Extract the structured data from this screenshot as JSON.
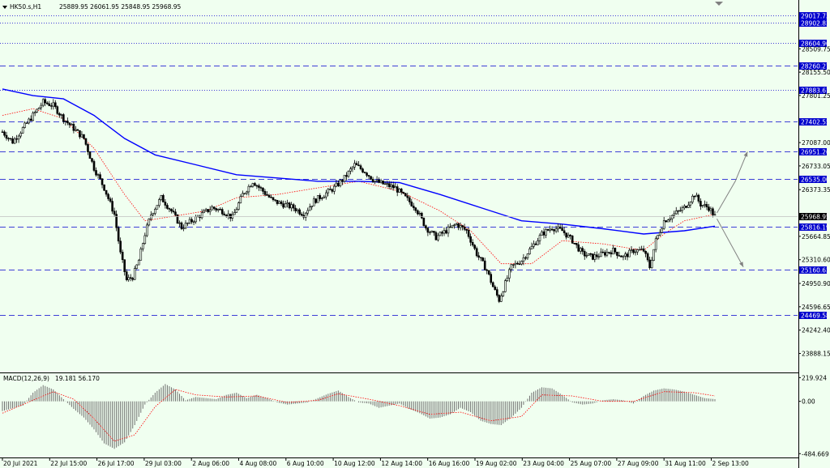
{
  "header": {
    "symbol_info": "HK50.s,H1",
    "ohlc": "25889.95 26061.95 25848.95 25968.95"
  },
  "macd_header": {
    "name": "MACD(12,26,9)",
    "values": "19.181 56.170"
  },
  "colors": {
    "background": "#f0fff0",
    "candle": "#000000",
    "ma_slow": "#0000ff",
    "ma_fast": "#ff0000",
    "level_line": "#0000cd",
    "level_box": "#0000cd",
    "arrow": "#808080"
  },
  "chart_data": [
    {
      "type": "candlestick",
      "title": "HK50.s,H1",
      "ylim": [
        23600,
        29250
      ],
      "price_ticks": [
        "28509.75",
        "28155.50",
        "27801.25",
        "27087.00",
        "26733.05",
        "26373.35",
        "25664.85",
        "25310.60",
        "24950.90",
        "24596.65",
        "24242.40",
        "23888.15"
      ],
      "current_price": "25968.95",
      "levels": [
        {
          "value": 29017.73,
          "label": "29017.73",
          "style": "dotted"
        },
        {
          "value": 28902.83,
          "label": "28902.83",
          "style": "dotted"
        },
        {
          "value": 28604.96,
          "label": "28604.96",
          "style": "dotted"
        },
        {
          "value": 28260.27,
          "label": "28260.27",
          "style": "dashed"
        },
        {
          "value": 27883.67,
          "label": "27883.67",
          "style": "dotted"
        },
        {
          "value": 27402.55,
          "label": "27402.55",
          "style": "dashed"
        },
        {
          "value": 26951.26,
          "label": "26951.26",
          "style": "dashed"
        },
        {
          "value": 26535.0,
          "label": "26535.00",
          "style": "dashed"
        },
        {
          "value": 25816.19,
          "label": "25816.19",
          "style": "dashed"
        },
        {
          "value": 25160.63,
          "label": "25160.63",
          "style": "dashed"
        },
        {
          "value": 24469.58,
          "label": "24469.58",
          "style": "dashed"
        }
      ],
      "time_labels": [
        "20 Jul 2021",
        "22 Jul 15:00",
        "26 Jul 17:00",
        "29 Jul 03:00",
        "2 Aug 06:00",
        "4 Aug 08:00",
        "6 Aug 10:00",
        "10 Aug 12:00",
        "12 Aug 14:00",
        "16 Aug 16:00",
        "19 Aug 02:00",
        "23 Aug 04:00",
        "25 Aug 07:00",
        "27 Aug 09:00",
        "31 Aug 11:00",
        "2 Sep 13:00"
      ],
      "close_path": [
        [
          0,
          27250
        ],
        [
          5,
          27100
        ],
        [
          10,
          27300
        ],
        [
          15,
          27500
        ],
        [
          20,
          27700
        ],
        [
          25,
          27650
        ],
        [
          30,
          27450
        ],
        [
          35,
          27300
        ],
        [
          40,
          27150
        ],
        [
          45,
          26700
        ],
        [
          50,
          26400
        ],
        [
          55,
          26000
        ],
        [
          58,
          25400
        ],
        [
          61,
          25000
        ],
        [
          64,
          25050
        ],
        [
          67,
          25300
        ],
        [
          70,
          25700
        ],
        [
          73,
          26000
        ],
        [
          78,
          26250
        ],
        [
          83,
          26050
        ],
        [
          88,
          25800
        ],
        [
          93,
          25900
        ],
        [
          98,
          26000
        ],
        [
          103,
          26100
        ],
        [
          108,
          26050
        ],
        [
          113,
          25950
        ],
        [
          118,
          26300
        ],
        [
          123,
          26500
        ],
        [
          128,
          26350
        ],
        [
          133,
          26200
        ],
        [
          138,
          26150
        ],
        [
          143,
          26100
        ],
        [
          148,
          26000
        ],
        [
          153,
          26200
        ],
        [
          158,
          26300
        ],
        [
          163,
          26400
        ],
        [
          168,
          26550
        ],
        [
          173,
          26750
        ],
        [
          178,
          26650
        ],
        [
          183,
          26500
        ],
        [
          188,
          26450
        ],
        [
          193,
          26400
        ],
        [
          198,
          26250
        ],
        [
          203,
          26100
        ],
        [
          208,
          25800
        ],
        [
          213,
          25650
        ],
        [
          218,
          25750
        ],
        [
          223,
          25850
        ],
        [
          228,
          25750
        ],
        [
          233,
          25400
        ],
        [
          238,
          25150
        ],
        [
          241,
          24900
        ],
        [
          244,
          24700
        ],
        [
          247,
          24950
        ],
        [
          250,
          25200
        ],
        [
          255,
          25300
        ],
        [
          260,
          25500
        ],
        [
          265,
          25700
        ],
        [
          270,
          25800
        ],
        [
          275,
          25750
        ],
        [
          280,
          25600
        ],
        [
          285,
          25400
        ],
        [
          290,
          25350
        ],
        [
          295,
          25400
        ],
        [
          300,
          25450
        ],
        [
          305,
          25350
        ],
        [
          310,
          25450
        ],
        [
          315,
          25450
        ],
        [
          318,
          25200
        ],
        [
          321,
          25600
        ],
        [
          325,
          25900
        ],
        [
          330,
          26000
        ],
        [
          335,
          26100
        ],
        [
          340,
          26300
        ],
        [
          343,
          26150
        ],
        [
          347,
          26100
        ],
        [
          350,
          25970
        ]
      ],
      "ma_slow": [
        [
          0,
          27900
        ],
        [
          15,
          27800
        ],
        [
          30,
          27750
        ],
        [
          45,
          27500
        ],
        [
          60,
          27150
        ],
        [
          75,
          26900
        ],
        [
          95,
          26750
        ],
        [
          115,
          26600
        ],
        [
          135,
          26550
        ],
        [
          155,
          26500
        ],
        [
          175,
          26500
        ],
        [
          195,
          26480
        ],
        [
          215,
          26300
        ],
        [
          235,
          26100
        ],
        [
          255,
          25900
        ],
        [
          275,
          25850
        ],
        [
          295,
          25780
        ],
        [
          315,
          25700
        ],
        [
          335,
          25750
        ],
        [
          350,
          25820
        ]
      ],
      "ma_fast": [
        [
          0,
          27500
        ],
        [
          15,
          27600
        ],
        [
          30,
          27450
        ],
        [
          45,
          27000
        ],
        [
          60,
          26300
        ],
        [
          70,
          25900
        ],
        [
          80,
          25950
        ],
        [
          100,
          26050
        ],
        [
          115,
          26250
        ],
        [
          135,
          26300
        ],
        [
          155,
          26400
        ],
        [
          175,
          26500
        ],
        [
          195,
          26350
        ],
        [
          215,
          26050
        ],
        [
          230,
          25750
        ],
        [
          245,
          25250
        ],
        [
          260,
          25250
        ],
        [
          275,
          25600
        ],
        [
          295,
          25550
        ],
        [
          315,
          25450
        ],
        [
          325,
          25700
        ],
        [
          335,
          25900
        ],
        [
          350,
          26000
        ]
      ],
      "projection_arrows": [
        {
          "from": [
            351,
            26020
          ],
          "via": [
            360,
            26500
          ],
          "to": [
            366,
            26950
          ]
        },
        {
          "from": [
            351,
            25930
          ],
          "to": [
            364,
            25200
          ]
        }
      ]
    },
    {
      "type": "bar",
      "title": "MACD(12,26,9)",
      "ylim": [
        -520,
        260
      ],
      "ticks": [
        "219.924",
        "0.00",
        "-484.669"
      ],
      "hist_path": [
        [
          0,
          -90
        ],
        [
          10,
          -40
        ],
        [
          15,
          80
        ],
        [
          20,
          150
        ],
        [
          25,
          110
        ],
        [
          30,
          20
        ],
        [
          35,
          -70
        ],
        [
          40,
          -150
        ],
        [
          45,
          -260
        ],
        [
          50,
          -390
        ],
        [
          55,
          -440
        ],
        [
          60,
          -380
        ],
        [
          65,
          -220
        ],
        [
          70,
          -30
        ],
        [
          75,
          80
        ],
        [
          80,
          160
        ],
        [
          85,
          110
        ],
        [
          90,
          10
        ],
        [
          95,
          40
        ],
        [
          100,
          30
        ],
        [
          105,
          20
        ],
        [
          110,
          60
        ],
        [
          115,
          80
        ],
        [
          120,
          30
        ],
        [
          125,
          60
        ],
        [
          130,
          30
        ],
        [
          135,
          -10
        ],
        [
          140,
          -30
        ],
        [
          145,
          -20
        ],
        [
          150,
          -10
        ],
        [
          155,
          30
        ],
        [
          160,
          70
        ],
        [
          165,
          100
        ],
        [
          170,
          40
        ],
        [
          175,
          -10
        ],
        [
          180,
          -20
        ],
        [
          185,
          -60
        ],
        [
          190,
          -40
        ],
        [
          195,
          -20
        ],
        [
          200,
          -70
        ],
        [
          205,
          -110
        ],
        [
          210,
          -160
        ],
        [
          215,
          -150
        ],
        [
          220,
          -120
        ],
        [
          225,
          -60
        ],
        [
          230,
          -100
        ],
        [
          235,
          -180
        ],
        [
          240,
          -210
        ],
        [
          245,
          -220
        ],
        [
          250,
          -150
        ],
        [
          255,
          -60
        ],
        [
          260,
          80
        ],
        [
          265,
          130
        ],
        [
          270,
          120
        ],
        [
          275,
          60
        ],
        [
          280,
          -10
        ],
        [
          285,
          -30
        ],
        [
          290,
          -20
        ],
        [
          295,
          10
        ],
        [
          300,
          20
        ],
        [
          305,
          10
        ],
        [
          310,
          -20
        ],
        [
          315,
          50
        ],
        [
          320,
          100
        ],
        [
          325,
          120
        ],
        [
          330,
          110
        ],
        [
          335,
          90
        ],
        [
          340,
          60
        ],
        [
          345,
          30
        ],
        [
          350,
          20
        ]
      ],
      "signal_path": [
        [
          0,
          -110
        ],
        [
          15,
          10
        ],
        [
          25,
          90
        ],
        [
          35,
          20
        ],
        [
          45,
          -160
        ],
        [
          55,
          -370
        ],
        [
          65,
          -310
        ],
        [
          75,
          -50
        ],
        [
          85,
          110
        ],
        [
          95,
          60
        ],
        [
          110,
          40
        ],
        [
          125,
          50
        ],
        [
          140,
          -10
        ],
        [
          155,
          10
        ],
        [
          165,
          70
        ],
        [
          180,
          20
        ],
        [
          195,
          -40
        ],
        [
          210,
          -120
        ],
        [
          225,
          -100
        ],
        [
          240,
          -180
        ],
        [
          255,
          -140
        ],
        [
          265,
          60
        ],
        [
          280,
          50
        ],
        [
          295,
          0
        ],
        [
          310,
          0
        ],
        [
          325,
          90
        ],
        [
          340,
          80
        ],
        [
          350,
          50
        ]
      ]
    }
  ]
}
